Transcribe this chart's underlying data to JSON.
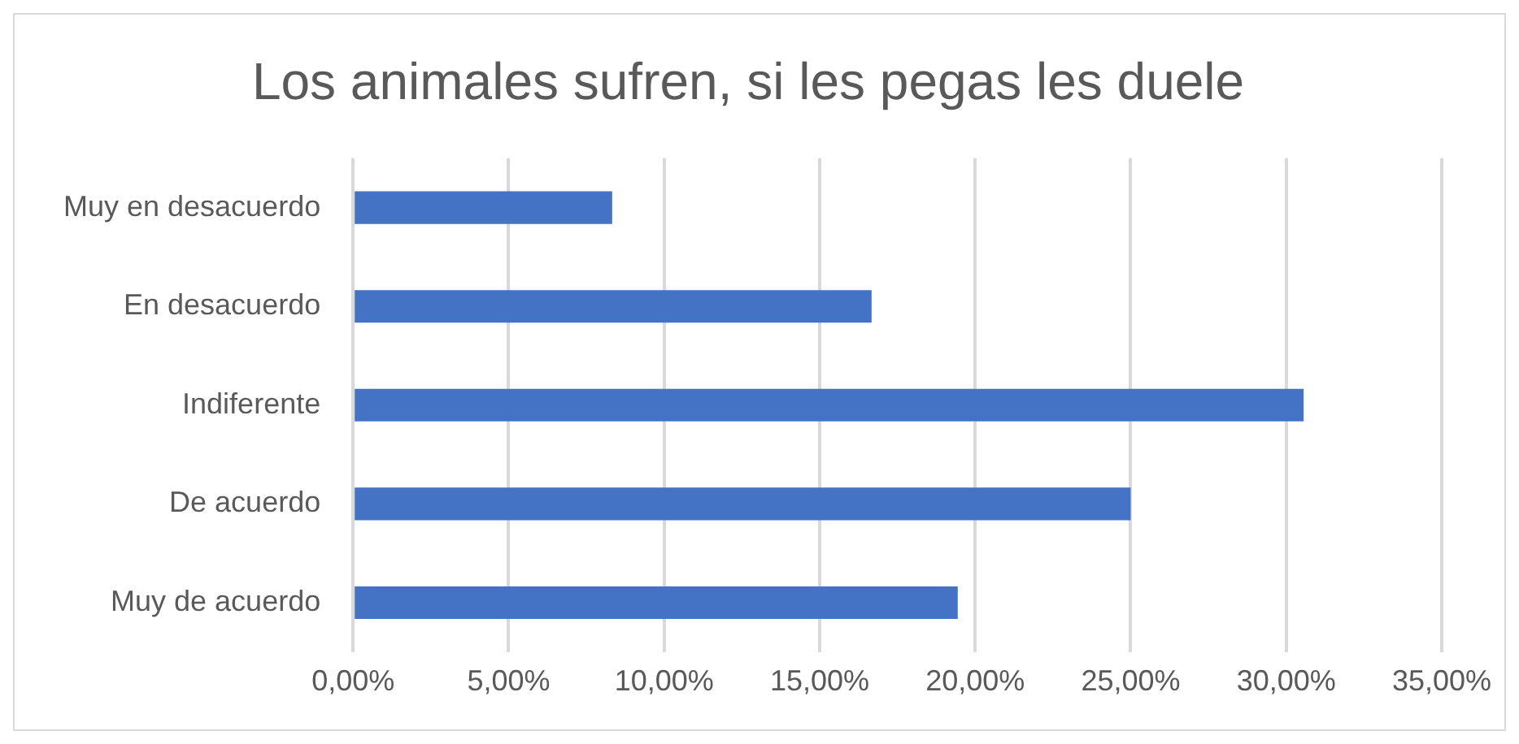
{
  "chart_data": {
    "type": "bar",
    "orientation": "horizontal",
    "title": "Los animales sufren, si les pegas les duele",
    "categories": [
      "Muy en desacuerdo",
      "En desacuerdo",
      "Indiferente",
      "De acuerdo",
      "Muy de acuerdo"
    ],
    "values": [
      8.33,
      16.67,
      30.56,
      25,
      19.44
    ],
    "color": "#4472c4",
    "xlim": [
      0,
      35
    ],
    "xticks": [
      {
        "value": 0,
        "label": "0,00%"
      },
      {
        "value": 5,
        "label": "5,00%"
      },
      {
        "value": 10,
        "label": "10,00%"
      },
      {
        "value": 15,
        "label": "15,00%"
      },
      {
        "value": 20,
        "label": "20,00%"
      },
      {
        "value": 25,
        "label": "25,00%"
      },
      {
        "value": 30,
        "label": "30,00%"
      },
      {
        "value": 35,
        "label": "35,00%"
      }
    ],
    "grid": "x",
    "legend": false
  }
}
